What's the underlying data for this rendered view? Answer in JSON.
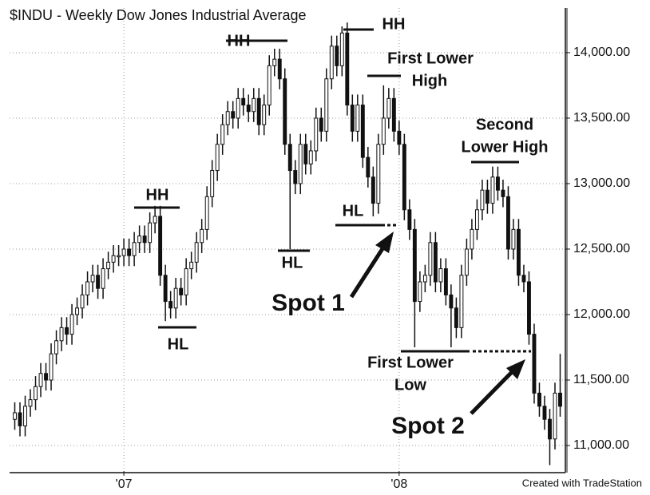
{
  "chart_data": {
    "type": "candlestick",
    "title": "$INDU - Weekly  Dow Jones Industrial Average",
    "footer": "Created with TradeStation",
    "annotations": [
      "HH",
      "HL",
      "HH",
      "HL",
      "HH",
      "First Lower",
      "High",
      "HL",
      "Spot 1",
      "Second",
      "Lower High",
      "First Lower",
      "Low",
      "Spot 2"
    ],
    "color": "#111111",
    "xlim": [
      -1,
      106
    ],
    "xticks": [
      {
        "value": 21,
        "label": "'07"
      },
      {
        "value": 74,
        "label": "'08"
      }
    ],
    "ylim": [
      10805,
      14402
    ],
    "yticks": [
      {
        "value": 11000,
        "label": "11,000.00"
      },
      {
        "value": 11500,
        "label": "11,500.00"
      },
      {
        "value": 12000,
        "label": "12,000.00"
      },
      {
        "value": 12500,
        "label": "12,500.00"
      },
      {
        "value": 13000,
        "label": "13,000.00"
      },
      {
        "value": 13500,
        "label": "13,500.00"
      },
      {
        "value": 14000,
        "label": "14,000.00"
      }
    ],
    "grid": true,
    "open": [
      11200,
      11250,
      11150,
      11300,
      11350,
      11450,
      11550,
      11500,
      11700,
      11800,
      11900,
      11850,
      12000,
      12050,
      12150,
      12250,
      12300,
      12200,
      12350,
      12400,
      12450,
      12450,
      12500,
      12450,
      12550,
      12600,
      12550,
      12700,
      12750,
      12300,
      12100,
      12050,
      12200,
      12150,
      12350,
      12400,
      12550,
      12650,
      12900,
      13100,
      13300,
      13450,
      13550,
      13500,
      13650,
      13600,
      13550,
      13650,
      13450,
      13600,
      13900,
      13950,
      13800,
      13300,
      13100,
      13000,
      13300,
      13150,
      13250,
      13500,
      13400,
      13800,
      14050,
      13900,
      14150,
      13600,
      13400,
      13600,
      13200,
      13050,
      12850,
      13300,
      13500,
      13650,
      13400,
      13300,
      12800,
      12650,
      12100,
      12250,
      12300,
      12550,
      12250,
      12350,
      12150,
      12050,
      11900,
      12300,
      12500,
      12650,
      12800,
      12950,
      12850,
      13050,
      12950,
      12900,
      12500,
      12650,
      12300,
      12250,
      11850,
      11400,
      11300,
      11200,
      11050,
      11400
    ],
    "high": [
      11330,
      11330,
      11380,
      11430,
      11530,
      11630,
      11630,
      11780,
      11880,
      11980,
      11980,
      12080,
      12130,
      12230,
      12330,
      12380,
      12380,
      12430,
      12480,
      12530,
      12530,
      12580,
      12580,
      12630,
      12680,
      12680,
      12780,
      12830,
      12830,
      12380,
      12180,
      12280,
      12280,
      12430,
      12480,
      12630,
      12730,
      12980,
      13180,
      13380,
      13530,
      13630,
      13630,
      13730,
      13730,
      13680,
      13730,
      13730,
      13680,
      13980,
      14030,
      14030,
      13880,
      13380,
      13180,
      13380,
      13380,
      13330,
      13580,
      13580,
      13880,
      14130,
      14130,
      14200,
      14230,
      13680,
      13680,
      13680,
      13280,
      13130,
      13380,
      13750,
      13730,
      13730,
      13480,
      13380,
      12880,
      12730,
      12330,
      12380,
      12630,
      12630,
      12430,
      12430,
      12230,
      12130,
      12380,
      12580,
      12730,
      12880,
      13030,
      13030,
      13130,
      13130,
      13030,
      12980,
      12730,
      12730,
      12380,
      12330,
      11930,
      11480,
      11380,
      11280,
      11480,
      11700
    ],
    "low": [
      11120,
      11070,
      11070,
      11220,
      11270,
      11370,
      11420,
      11420,
      11620,
      11720,
      11770,
      11770,
      11920,
      11970,
      12070,
      12170,
      12120,
      12120,
      12270,
      12320,
      12370,
      12370,
      12370,
      12370,
      12470,
      12470,
      12470,
      12620,
      12220,
      11950,
      11970,
      11970,
      12070,
      12070,
      12270,
      12320,
      12470,
      12570,
      12820,
      13020,
      13220,
      13370,
      13420,
      13420,
      13520,
      13470,
      13470,
      13370,
      13370,
      13520,
      13820,
      13720,
      13220,
      12500,
      12920,
      12920,
      13070,
      13070,
      13170,
      13320,
      13320,
      13720,
      13820,
      13820,
      13520,
      13320,
      13320,
      13120,
      12970,
      12750,
      12770,
      13220,
      13420,
      13320,
      13220,
      12720,
      12570,
      11750,
      12020,
      12170,
      12220,
      12170,
      12170,
      12070,
      11750,
      11820,
      11820,
      12220,
      12420,
      12570,
      12720,
      12770,
      12770,
      12870,
      12820,
      12420,
      12420,
      12220,
      12170,
      11770,
      11320,
      11220,
      11120,
      10850,
      10970,
      11220
    ],
    "close": [
      11250,
      11150,
      11300,
      11350,
      11450,
      11550,
      11500,
      11700,
      11800,
      11900,
      11850,
      12000,
      12050,
      12150,
      12250,
      12300,
      12200,
      12350,
      12400,
      12450,
      12450,
      12500,
      12450,
      12550,
      12600,
      12550,
      12700,
      12750,
      12300,
      12100,
      12050,
      12200,
      12150,
      12350,
      12400,
      12550,
      12650,
      12900,
      13100,
      13300,
      13450,
      13550,
      13500,
      13650,
      13600,
      13550,
      13650,
      13450,
      13600,
      13900,
      13950,
      13800,
      13300,
      13100,
      13000,
      13300,
      13150,
      13250,
      13500,
      13400,
      13800,
      14050,
      13900,
      14150,
      13600,
      13400,
      13600,
      13200,
      13050,
      12850,
      13300,
      13500,
      13650,
      13400,
      13300,
      12800,
      12650,
      12100,
      12250,
      12300,
      12550,
      12250,
      12350,
      12150,
      12050,
      11900,
      12300,
      12500,
      12650,
      12800,
      12950,
      12850,
      13050,
      12950,
      12900,
      12500,
      12650,
      12300,
      12250,
      11850,
      11400,
      11300,
      11200,
      11050,
      11400,
      11300
    ]
  }
}
